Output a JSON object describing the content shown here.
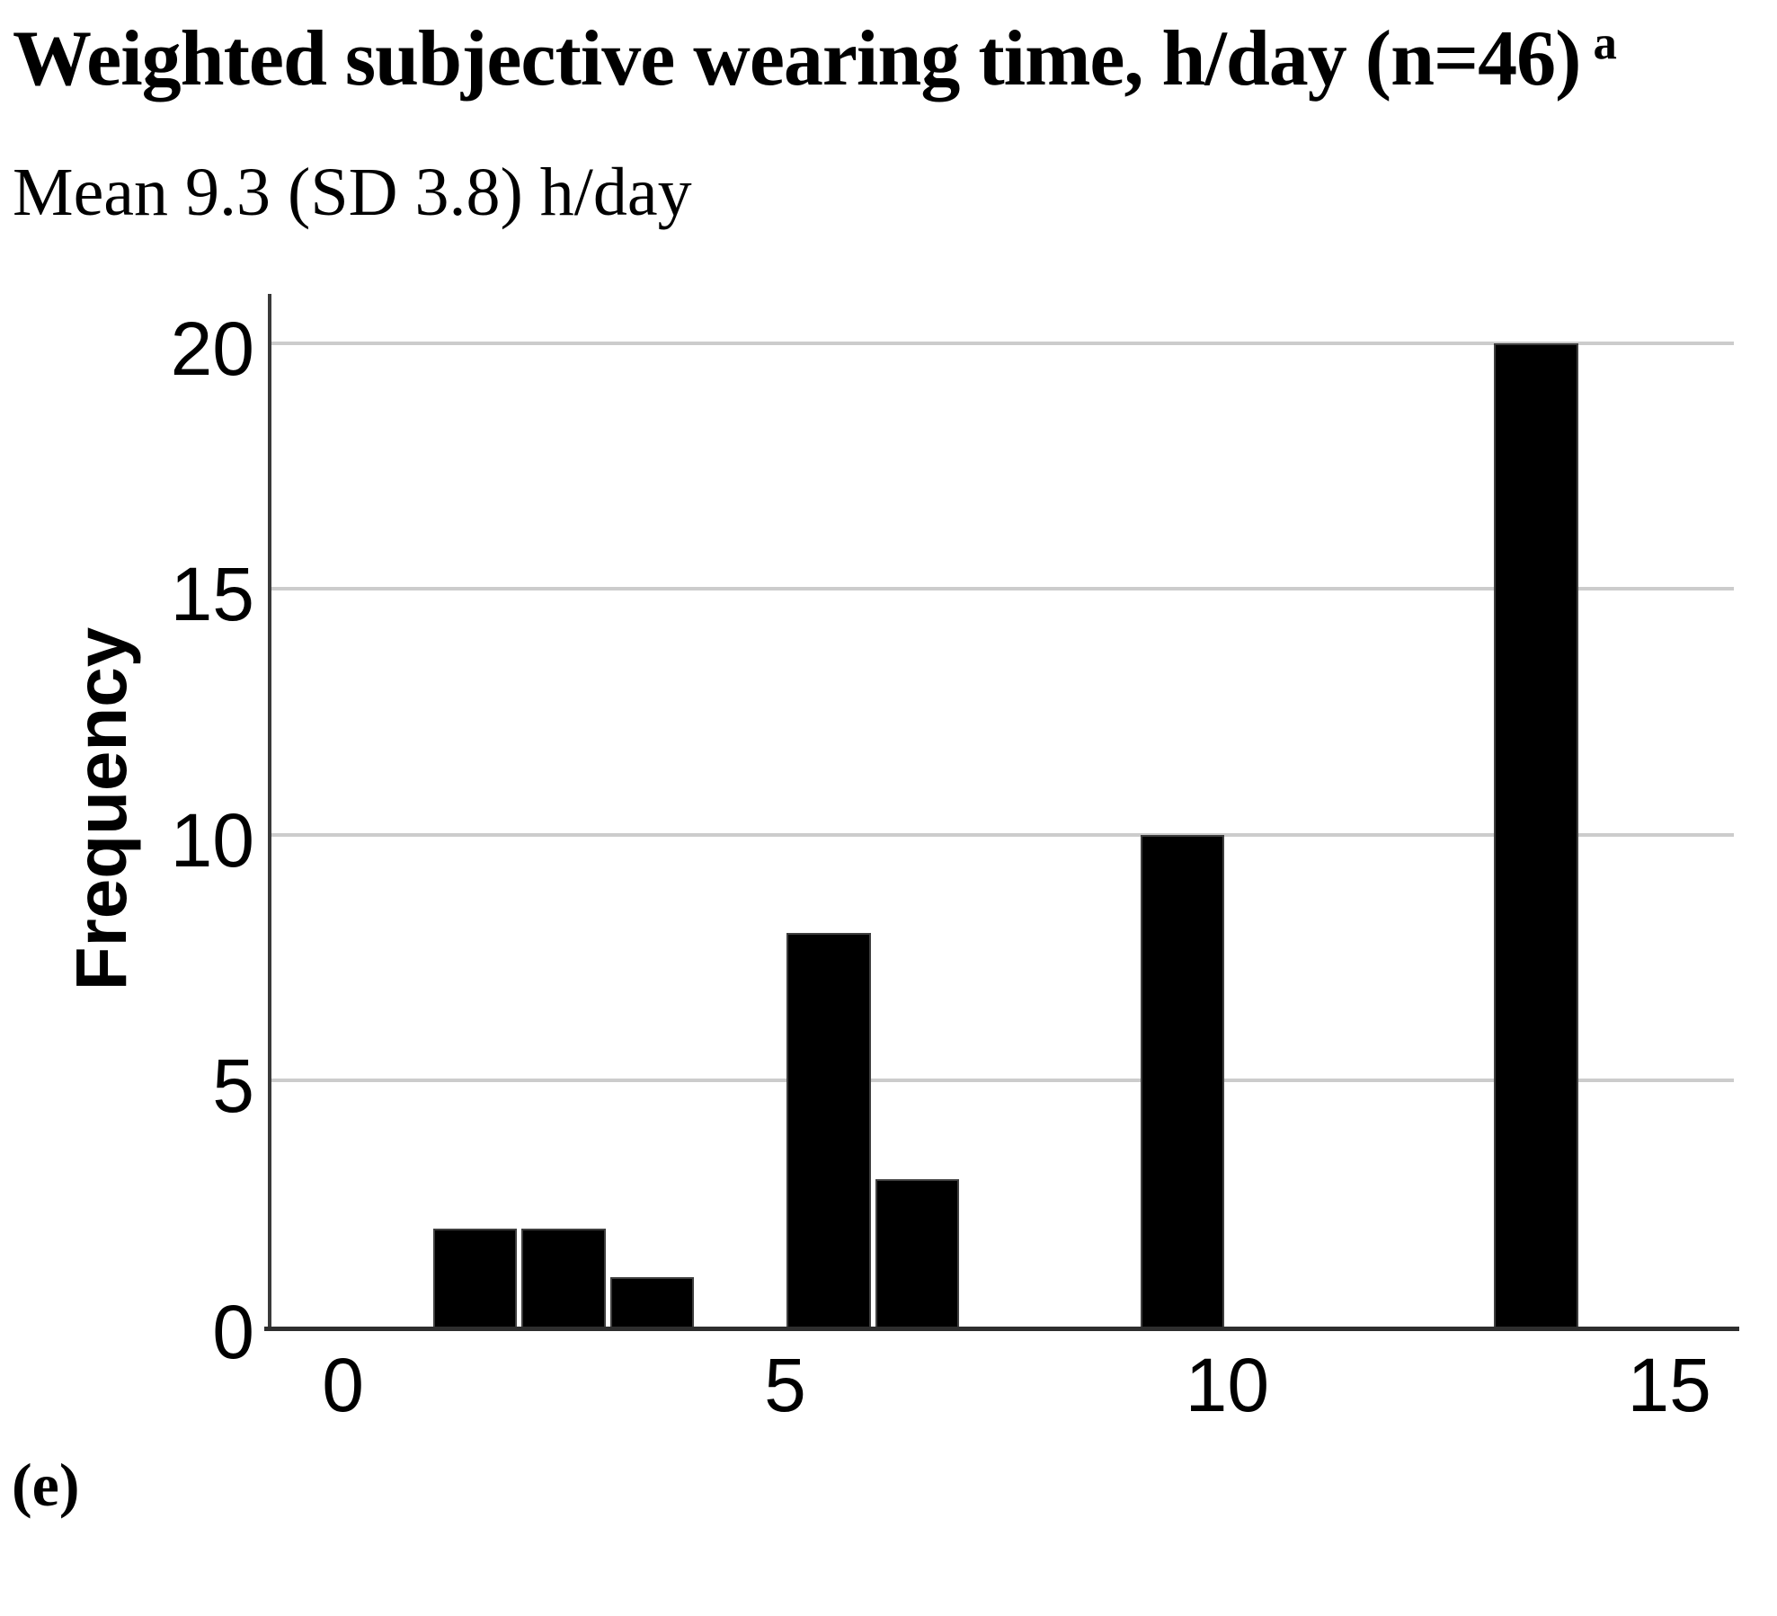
{
  "title": {
    "text": "Weighted subjective wearing time, h/day (n=46)",
    "superscript": "a"
  },
  "subtitle": "Mean 9.3 (SD 3.8) h/day",
  "panel_label": "(e)",
  "chart_data": {
    "type": "bar",
    "subtype": "histogram",
    "title": "Weighted subjective wearing time, h/day (n=46)",
    "subtitle": "Mean 9.3 (SD 3.8) h/day",
    "xlabel": "",
    "ylabel": "Frequency",
    "n": 46,
    "mean_h_per_day": 9.3,
    "sd_h_per_day": 3.8,
    "x_ticks": [
      0,
      5,
      10,
      15
    ],
    "y_ticks": [
      0,
      5,
      10,
      15,
      20
    ],
    "xlim": [
      -0.83,
      15.73
    ],
    "ylim": [
      0,
      21
    ],
    "grid": "horizontal",
    "legend": "none",
    "bars": [
      {
        "x0": 1,
        "x1": 2,
        "count": 2
      },
      {
        "x0": 2,
        "x1": 3,
        "count": 2
      },
      {
        "x0": 3,
        "x1": 4,
        "count": 1
      },
      {
        "x0": 5,
        "x1": 6,
        "count": 8
      },
      {
        "x0": 6,
        "x1": 7,
        "count": 3
      },
      {
        "x0": 9,
        "x1": 10,
        "count": 10
      },
      {
        "x0": 13,
        "x1": 14,
        "count": 20
      }
    ]
  },
  "colors": {
    "bar_fill": "#000000",
    "bar_edge": "#3f3f3f",
    "gridline": "#cccccc",
    "axis_line": "#2e2e2e",
    "text": "#000000",
    "background": "#ffffff"
  }
}
